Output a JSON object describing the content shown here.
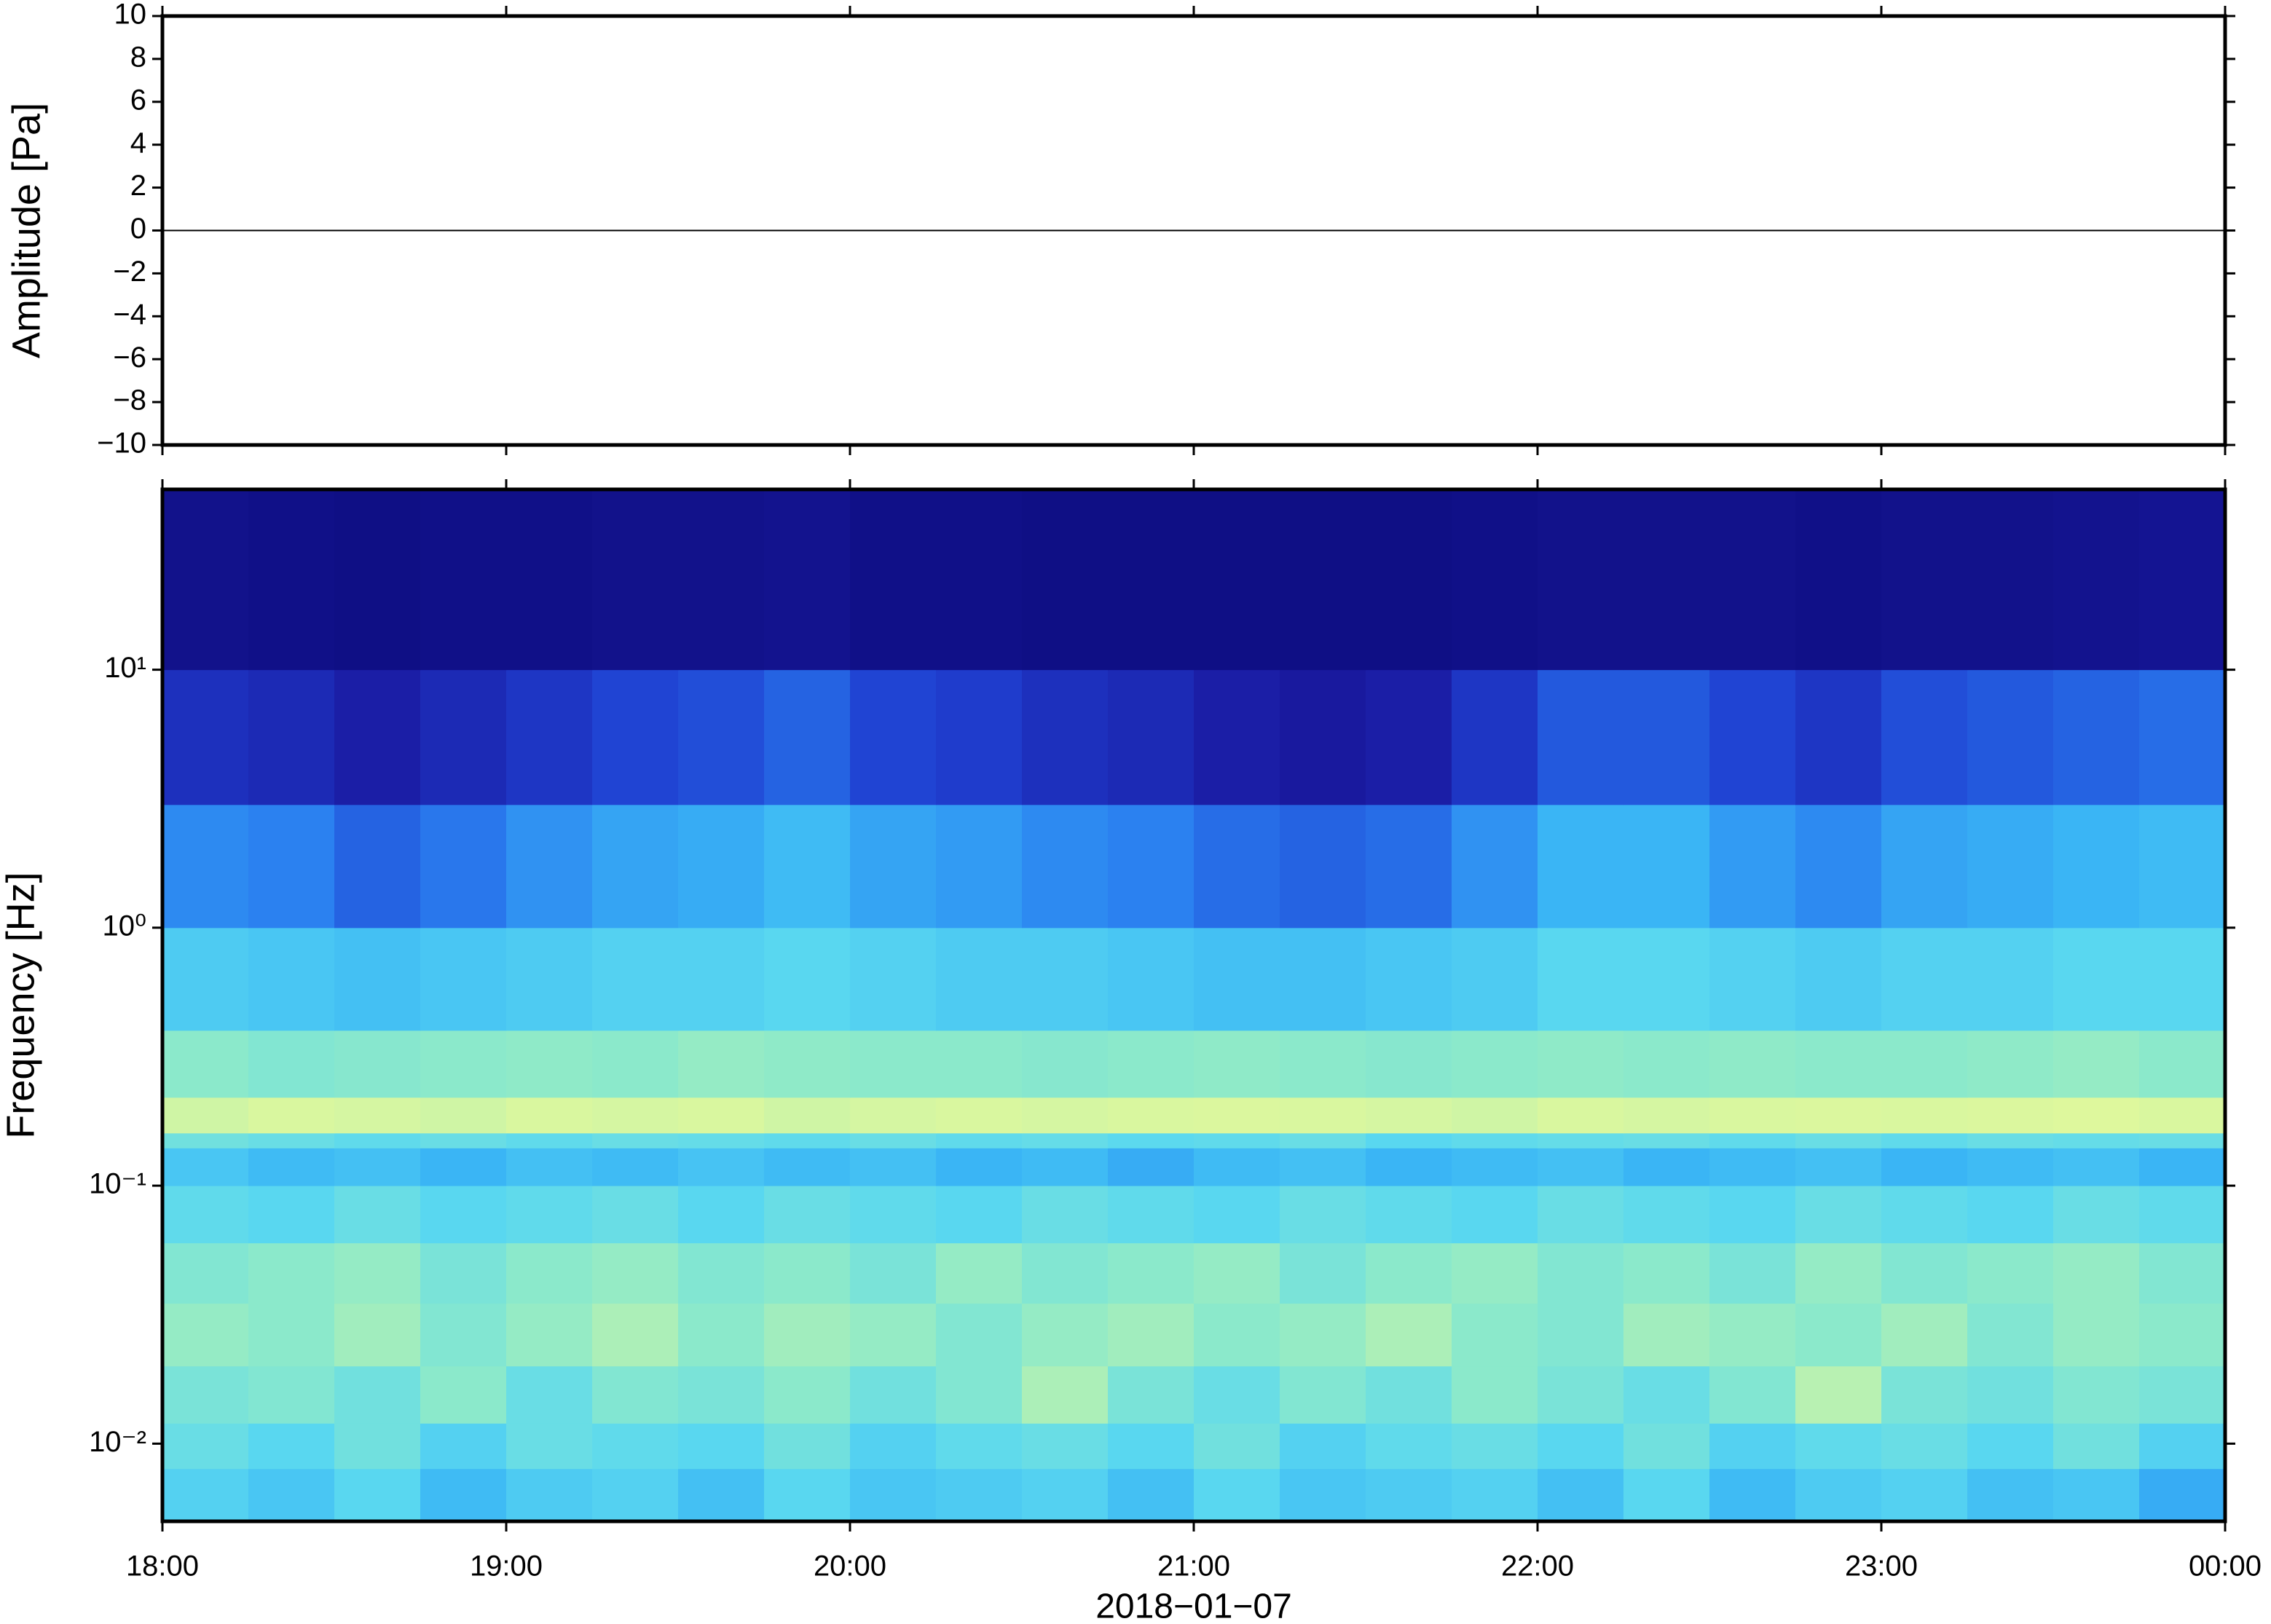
{
  "chart_data": [
    {
      "type": "line",
      "ylabel": "Amplitude [Pa]",
      "xlim": [
        18,
        24
      ],
      "xticks": [
        18,
        19,
        20,
        21,
        22,
        23,
        24
      ],
      "ylim": [
        -10,
        10
      ],
      "yticks": [
        {
          "value": -10,
          "label": "−10"
        },
        {
          "value": -8,
          "label": "−8"
        },
        {
          "value": -6,
          "label": "−6"
        },
        {
          "value": -4,
          "label": "−4"
        },
        {
          "value": -2,
          "label": "−2"
        },
        0,
        2,
        4,
        6,
        8,
        10
      ],
      "series": [
        {
          "color": "#000000",
          "x": [
            18,
            24
          ],
          "values": [
            0,
            0
          ]
        }
      ]
    },
    {
      "type": "heatmap",
      "xlabel": "2018−01−07",
      "ylabel": "Frequency [Hz]",
      "xlim": [
        18,
        24
      ],
      "xticks": [
        {
          "value": 18,
          "label": "18:00"
        },
        {
          "value": 19,
          "label": "19:00"
        },
        {
          "value": 20,
          "label": "20:00"
        },
        {
          "value": 21,
          "label": "21:00"
        },
        {
          "value": 22,
          "label": "22:00"
        },
        {
          "value": 23,
          "label": "23:00"
        },
        {
          "value": 24,
          "label": "00:00"
        }
      ],
      "ylim": [
        0.005,
        50
      ],
      "log_y": true,
      "yticks": [
        {
          "value": 0.01,
          "label": "10⁻²"
        },
        {
          "value": 0.1,
          "label": "10⁻¹"
        },
        {
          "value": 1,
          "label": "10⁰"
        },
        {
          "value": 10,
          "label": "10¹"
        }
      ],
      "time_bins": [
        18,
        18.25,
        18.5,
        18.75,
        19,
        19.25,
        19.5,
        19.75,
        20,
        20.25,
        20.5,
        20.75,
        21,
        21.25,
        21.5,
        21.75,
        22,
        22.25,
        22.5,
        22.75,
        23,
        23.25,
        23.5,
        23.75,
        24
      ],
      "freq_bins": [
        0.005,
        0.008,
        0.012,
        0.02,
        0.035,
        0.06,
        0.1,
        0.14,
        0.16,
        0.22,
        0.4,
        1,
        3,
        10,
        50
      ],
      "zlim": [
        0,
        100
      ],
      "colormap": [
        "#0a0a78",
        "#1a1aa0",
        "#1f3fd0",
        "#2a7ff0",
        "#3ab5f5",
        "#5ad8f0",
        "#8feac8",
        "#d8f7a0",
        "#f5fa90"
      ],
      "values": [
        [
          60,
          56,
          62,
          52,
          58,
          60,
          54,
          62,
          56,
          58,
          60,
          54,
          62,
          56,
          58,
          60,
          54,
          62,
          52,
          58,
          60,
          54,
          56,
          48
        ],
        [
          66,
          62,
          68,
          60,
          66,
          64,
          62,
          68,
          60,
          64,
          66,
          62,
          68,
          60,
          64,
          66,
          62,
          68,
          60,
          64,
          66,
          62,
          68,
          60
        ],
        [
          70,
          72,
          68,
          74,
          66,
          72,
          70,
          74,
          68,
          72,
          80,
          70,
          66,
          72,
          68,
          74,
          70,
          66,
          72,
          82,
          70,
          68,
          72,
          70
        ],
        [
          76,
          74,
          78,
          72,
          76,
          80,
          74,
          78,
          76,
          72,
          76,
          78,
          74,
          76,
          80,
          74,
          72,
          78,
          76,
          74,
          78,
          72,
          76,
          74
        ],
        [
          72,
          74,
          76,
          70,
          74,
          76,
          72,
          74,
          70,
          76,
          72,
          74,
          76,
          70,
          74,
          76,
          72,
          74,
          70,
          76,
          72,
          74,
          76,
          72
        ],
        [
          64,
          62,
          66,
          62,
          64,
          66,
          62,
          66,
          64,
          62,
          66,
          64,
          62,
          66,
          64,
          62,
          66,
          64,
          62,
          66,
          64,
          62,
          66,
          64
        ],
        [
          56,
          52,
          54,
          50,
          54,
          52,
          55,
          52,
          54,
          50,
          52,
          48,
          52,
          54,
          50,
          52,
          54,
          50,
          52,
          54,
          50,
          52,
          54,
          50
        ],
        [
          68,
          66,
          64,
          66,
          64,
          66,
          65,
          64,
          66,
          64,
          65,
          63,
          64,
          66,
          62,
          64,
          65,
          66,
          64,
          66,
          64,
          66,
          65,
          66
        ],
        [
          86,
          88,
          87,
          86,
          88,
          87,
          88,
          86,
          87,
          88,
          87,
          88,
          89,
          88,
          87,
          86,
          88,
          87,
          88,
          89,
          88,
          89,
          90,
          88
        ],
        [
          74,
          72,
          73,
          74,
          75,
          74,
          76,
          75,
          74,
          74,
          73,
          74,
          75,
          74,
          73,
          74,
          75,
          74,
          75,
          74,
          74,
          75,
          76,
          74
        ],
        [
          58,
          56,
          54,
          56,
          58,
          60,
          60,
          62,
          60,
          58,
          58,
          56,
          54,
          54,
          56,
          58,
          62,
          62,
          60,
          58,
          60,
          60,
          62,
          62
        ],
        [
          40,
          38,
          32,
          36,
          42,
          46,
          48,
          52,
          46,
          44,
          40,
          38,
          34,
          32,
          34,
          42,
          50,
          50,
          44,
          40,
          46,
          48,
          50,
          52
        ],
        [
          20,
          18,
          14,
          18,
          22,
          26,
          28,
          32,
          26,
          24,
          20,
          18,
          14,
          12,
          14,
          22,
          30,
          30,
          26,
          22,
          28,
          30,
          32,
          34
        ],
        [
          6,
          5,
          4,
          5,
          5,
          6,
          6,
          7,
          5,
          5,
          4,
          4,
          4,
          4,
          4,
          5,
          6,
          6,
          6,
          5,
          6,
          6,
          7,
          8
        ]
      ]
    }
  ]
}
